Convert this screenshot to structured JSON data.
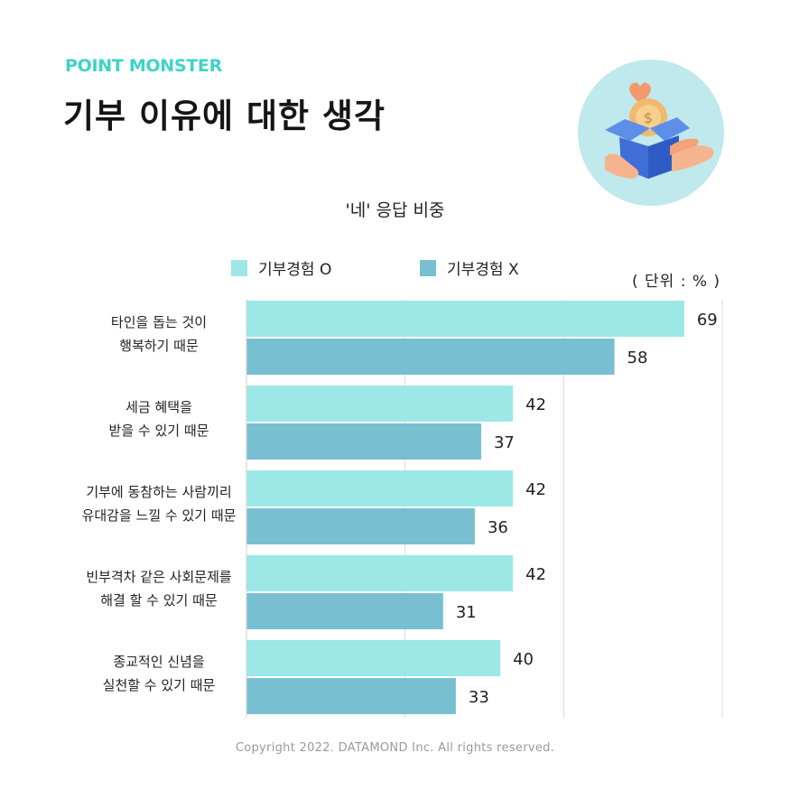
{
  "brand": "POINT MONSTER",
  "title": "기부 이유에 대한 생각",
  "copyright": "Copyright 2022. DATAMOND Inc. All rights reserved.",
  "colors": {
    "brand": "#3ed3c7",
    "series_o": "#9be8e6",
    "series_x": "#78bfd2"
  },
  "icons": {
    "illustration": "donation-box-hands-coin-heart-icon"
  },
  "chart_data": {
    "type": "bar",
    "orientation": "horizontal",
    "title": "'네' 응답 비중",
    "unit_label": "( 단위 : % )",
    "categories": [
      [
        "타인을 돕는 것이",
        "행복하기 때문"
      ],
      [
        "세금 혜택을",
        "받을 수 있기 때문"
      ],
      [
        "기부에 동참하는 사람끼리",
        "유대감을 느낄 수 있기 때문"
      ],
      [
        "빈부격차 같은 사회문제를",
        "해결 할 수 있기 때문"
      ],
      [
        "종교적인 신념을",
        "실천할 수 있기 때문"
      ]
    ],
    "series": [
      {
        "name": "기부경험 O",
        "values": [
          69,
          42,
          42,
          42,
          40
        ]
      },
      {
        "name": "기부경험 X",
        "values": [
          58,
          37,
          36,
          31,
          33
        ]
      }
    ],
    "xlim": [
      0,
      75
    ],
    "grid": true,
    "legend": "top"
  }
}
